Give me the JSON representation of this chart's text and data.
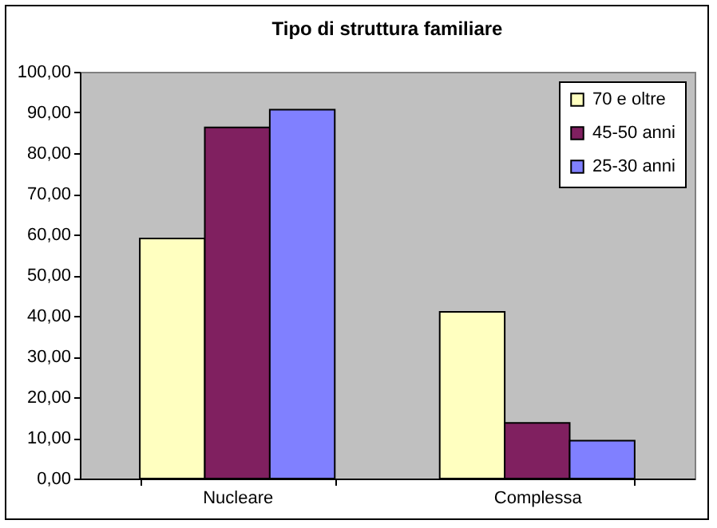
{
  "chart_data": {
    "type": "bar",
    "title": "Tipo di struttura familiare",
    "categories": [
      "Nucleare",
      "Complessa"
    ],
    "series": [
      {
        "name": "70 e oltre",
        "color": "#ffffc0",
        "values": [
          59,
          41
        ]
      },
      {
        "name": "45-50 anni",
        "color": "#802060",
        "values": [
          86.3,
          13.7
        ]
      },
      {
        "name": "25-30 anni",
        "color": "#8080ff",
        "values": [
          90.7,
          9.3
        ]
      }
    ],
    "ylim": [
      0,
      100
    ],
    "yticks": [
      {
        "value": 0,
        "label": "0,00"
      },
      {
        "value": 10,
        "label": "10,00"
      },
      {
        "value": 20,
        "label": "20,00"
      },
      {
        "value": 30,
        "label": "30,00"
      },
      {
        "value": 40,
        "label": "40,00"
      },
      {
        "value": 50,
        "label": "50,00"
      },
      {
        "value": 60,
        "label": "60,00"
      },
      {
        "value": 70,
        "label": "70,00"
      },
      {
        "value": 80,
        "label": "80,00"
      },
      {
        "value": 90,
        "label": "90,00"
      },
      {
        "value": 100,
        "label": "100,00"
      }
    ],
    "grid": false,
    "legend": "top right"
  }
}
